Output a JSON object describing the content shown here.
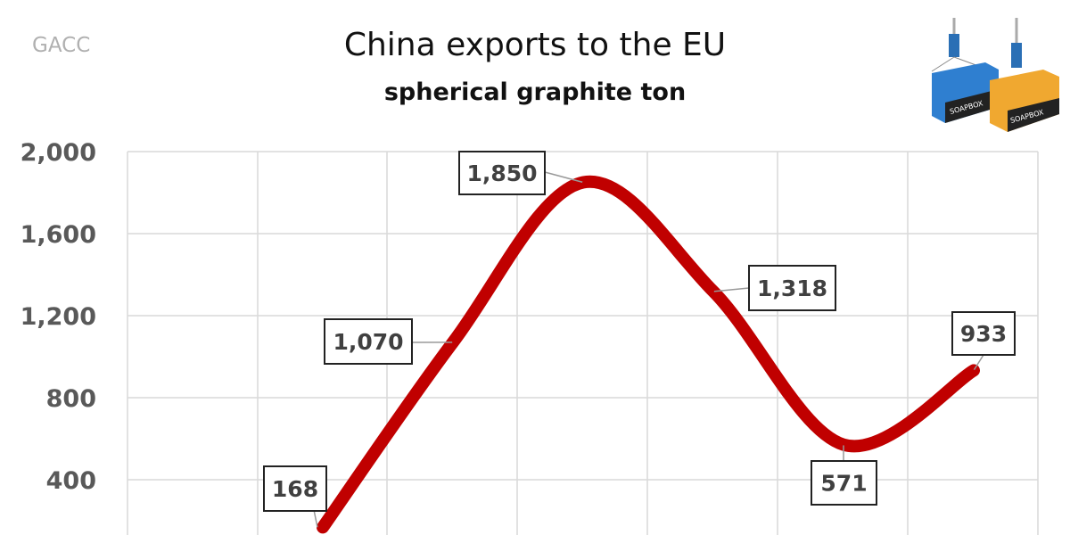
{
  "source": "GACC",
  "logo_text": "SOAPBOX",
  "chart_data": {
    "type": "line",
    "title": "China exports to the EU",
    "subtitle": "spherical graphite ton",
    "xlabel": "",
    "ylabel": "",
    "ylim": [
      0,
      2000
    ],
    "yticks": [
      "400",
      "800",
      "1,200",
      "1,600",
      "2,000"
    ],
    "ytick_values": [
      400,
      800,
      1200,
      1600,
      2000
    ],
    "grid": true,
    "series": [
      {
        "name": "spherical graphite",
        "color": "#c00000",
        "values": [
          168,
          1070,
          1850,
          1318,
          571,
          933
        ],
        "labels": [
          "168",
          "1,070",
          "1,850",
          "1,318",
          "571",
          "933"
        ]
      }
    ]
  }
}
